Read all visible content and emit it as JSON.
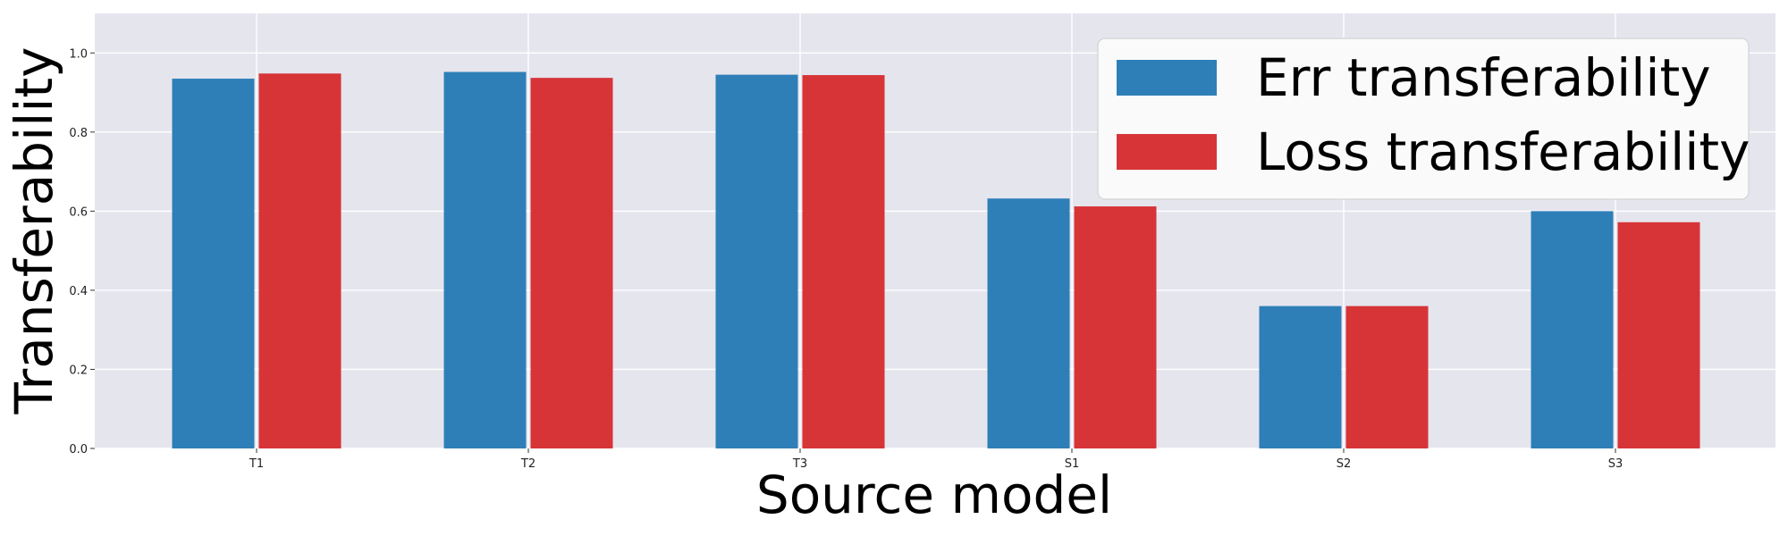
{
  "chart_data": {
    "type": "bar",
    "title": "",
    "xlabel": "Source model",
    "ylabel": "Transferability",
    "categories": [
      "T1",
      "T2",
      "T3",
      "S1",
      "S2",
      "S3"
    ],
    "series": [
      {
        "name": "Err transferability",
        "color": "#2e7fb8",
        "values": [
          0.935,
          0.952,
          0.945,
          0.632,
          0.36,
          0.6
        ]
      },
      {
        "name": "Loss transferability",
        "color": "#d73437",
        "values": [
          0.948,
          0.937,
          0.944,
          0.612,
          0.36,
          0.572
        ]
      }
    ],
    "ylim": [
      0,
      1.1
    ],
    "yticks": [
      0.0,
      0.2,
      0.4,
      0.6,
      0.8,
      1.0
    ],
    "ytick_labels": [
      "0.0",
      "0.2",
      "0.4",
      "0.6",
      "0.8",
      "1.0"
    ],
    "grid": true,
    "legend_position": "top-right",
    "background_color": "#e5e5ee"
  }
}
